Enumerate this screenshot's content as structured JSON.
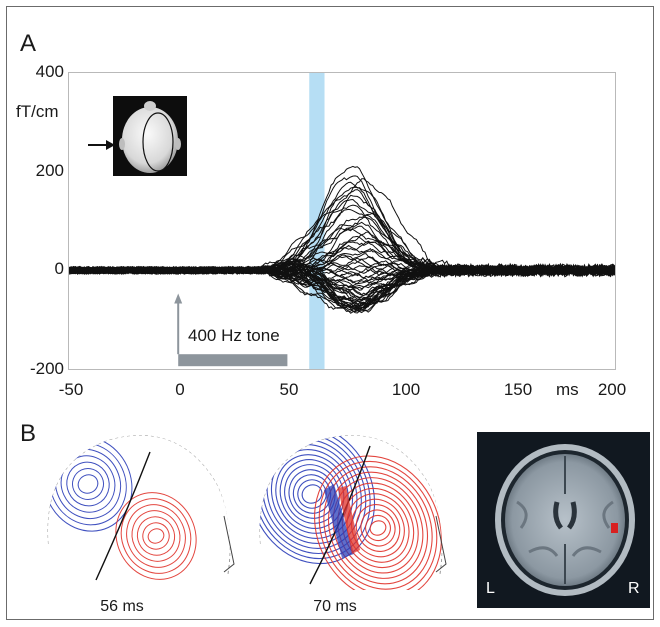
{
  "panel_a": {
    "letter": "A",
    "unit_label": "fT/cm",
    "x_unit_label": "ms",
    "stimulus_label": "400 Hz tone",
    "highlight_window_ms": [
      60,
      67
    ]
  },
  "panel_b": {
    "letter": "B",
    "maps": [
      {
        "caption": "56 ms"
      },
      {
        "caption": "70 ms"
      }
    ],
    "mri": {
      "left_label": "L",
      "right_label": "R"
    }
  },
  "chart_data": {
    "type": "line",
    "title": "",
    "xlabel": "ms",
    "ylabel": "fT/cm",
    "xlim": [
      -50,
      200
    ],
    "ylim": [
      -200,
      400
    ],
    "x_ticks": [
      -50,
      0,
      50,
      100,
      150,
      200
    ],
    "y_ticks": [
      400,
      200,
      0,
      -200
    ],
    "peak_latency_ms": 82,
    "peak_amplitude_max": 210,
    "peak_amplitude_min": -80,
    "stimulus_onset_ms": 0,
    "stimulus_duration_ms": 50,
    "series_count": 60,
    "grid": false,
    "legend": "none"
  },
  "colors": {
    "trace": "#111111",
    "highlight": "#a9d8f2",
    "stimulus_bar": "#8d959c",
    "blue_contours": "#2a3db8",
    "red_contours": "#e0322a",
    "mri_bg": "#111820",
    "activation": "#d82020"
  }
}
